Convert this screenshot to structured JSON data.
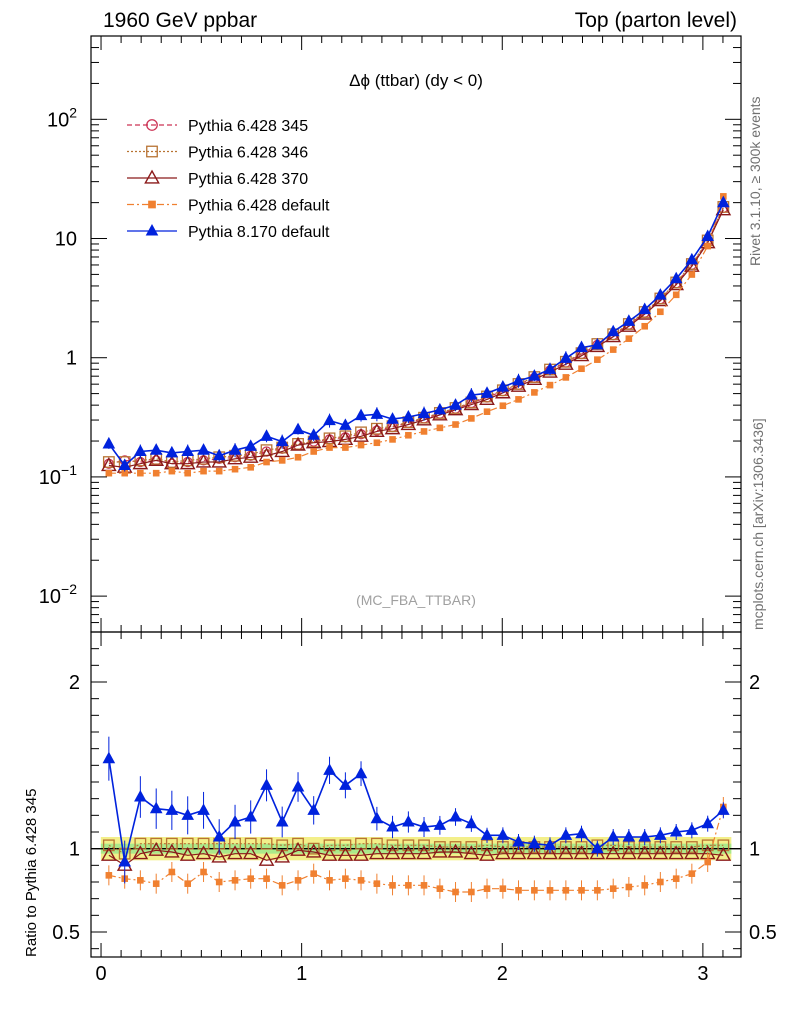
{
  "header": {
    "left": "1960 GeV ppbar",
    "right": "Top (parton level)"
  },
  "side_labels": {
    "rivet": "Rivet 3.1.10, ≥ 300k events",
    "mcplots": "mcplots.cern.ch [arXiv:1306.3436]"
  },
  "chart_data": [
    {
      "type": "line",
      "title": "Δϕ (ttbar) (dy < 0)",
      "annotation": "(MC_FBA_TTBAR)",
      "ylog": true,
      "ylim": [
        0.005,
        500
      ],
      "xlim": [
        -0.05,
        3.19
      ],
      "ytick_labels": [
        {
          "v": 0.01,
          "base": "10",
          "exp": "−2"
        },
        {
          "v": 0.1,
          "base": "10",
          "exp": "−1"
        },
        {
          "v": 1,
          "base": "1",
          "exp": ""
        },
        {
          "v": 10,
          "base": "10",
          "exp": ""
        },
        {
          "v": 100,
          "base": "10",
          "exp": "2"
        }
      ],
      "x": [
        0.039,
        0.118,
        0.196,
        0.275,
        0.353,
        0.432,
        0.511,
        0.589,
        0.668,
        0.746,
        0.825,
        0.903,
        0.982,
        1.06,
        1.139,
        1.218,
        1.296,
        1.375,
        1.453,
        1.532,
        1.61,
        1.689,
        1.767,
        1.846,
        1.924,
        2.003,
        2.081,
        2.16,
        2.238,
        2.317,
        2.395,
        2.474,
        2.553,
        2.631,
        2.71,
        2.788,
        2.867,
        2.945,
        3.024,
        3.102
      ],
      "series": [
        {
          "name": "Pythia 6.428 345",
          "color": "#cc3355",
          "marker": "open-circle",
          "dash": "5,3",
          "values": [
            0.03,
            0.032,
            0.031,
            0.032,
            0.03,
            0.031,
            0.032,
            0.033,
            0.034,
            0.035,
            0.038,
            0.04,
            0.043,
            0.046,
            0.048,
            0.05,
            0.053,
            0.057,
            0.061,
            0.066,
            0.072,
            0.079,
            0.087,
            0.097,
            0.108,
            0.122,
            0.138,
            0.158,
            0.182,
            0.212,
            0.25,
            0.298,
            0.36,
            0.44,
            0.555,
            0.72,
            0.98,
            1.4,
            2.2,
            4.2
          ]
        },
        {
          "name": "Pythia 6.428 346",
          "color": "#b87333",
          "marker": "open-square",
          "dash": "2,2",
          "values": [
            0.031,
            0.031,
            0.032,
            0.033,
            0.031,
            0.032,
            0.033,
            0.034,
            0.035,
            0.036,
            0.039,
            0.041,
            0.044,
            0.046,
            0.049,
            0.051,
            0.055,
            0.059,
            0.062,
            0.067,
            0.073,
            0.08,
            0.088,
            0.098,
            0.11,
            0.124,
            0.14,
            0.16,
            0.185,
            0.215,
            0.254,
            0.303,
            0.366,
            0.446,
            0.562,
            0.73,
            0.995,
            1.42,
            2.24,
            4.28
          ]
        },
        {
          "name": "Pythia 6.428 370",
          "color": "#8b1a1a",
          "marker": "open-triangle",
          "dash": "",
          "values": [
            0.029,
            0.028,
            0.03,
            0.032,
            0.03,
            0.03,
            0.031,
            0.031,
            0.033,
            0.034,
            0.035,
            0.038,
            0.043,
            0.045,
            0.046,
            0.048,
            0.051,
            0.056,
            0.059,
            0.064,
            0.07,
            0.077,
            0.085,
            0.094,
            0.104,
            0.118,
            0.134,
            0.153,
            0.176,
            0.205,
            0.242,
            0.289,
            0.349,
            0.427,
            0.54,
            0.7,
            0.953,
            1.36,
            2.14,
            4.05
          ]
        },
        {
          "name": "Pythia 6.428 default",
          "color": "#f08030",
          "marker": "filled-square",
          "dash": "7,3,2,3",
          "values": [
            0.025,
            0.025,
            0.025,
            0.025,
            0.026,
            0.025,
            0.026,
            0.026,
            0.027,
            0.028,
            0.031,
            0.032,
            0.034,
            0.038,
            0.041,
            0.041,
            0.043,
            0.045,
            0.048,
            0.052,
            0.056,
            0.06,
            0.064,
            0.072,
            0.082,
            0.092,
            0.104,
            0.119,
            0.137,
            0.159,
            0.188,
            0.224,
            0.272,
            0.336,
            0.427,
            0.565,
            0.784,
            1.16,
            2.01,
            5.25
          ]
        },
        {
          "name": "Pythia 8.170 default",
          "color": "#0022dd",
          "marker": "filled-triangle",
          "dash": "",
          "values": [
            0.044,
            0.029,
            0.038,
            0.039,
            0.037,
            0.038,
            0.039,
            0.035,
            0.039,
            0.042,
            0.051,
            0.046,
            0.058,
            0.052,
            0.069,
            0.063,
            0.076,
            0.078,
            0.071,
            0.074,
            0.079,
            0.085,
            0.093,
            0.113,
            0.117,
            0.132,
            0.149,
            0.163,
            0.186,
            0.23,
            0.283,
            0.298,
            0.384,
            0.47,
            0.59,
            0.78,
            1.07,
            1.54,
            2.42,
            4.65
          ]
        }
      ],
      "main_series_factor": 4.3
    },
    {
      "type": "line",
      "ylabel": "Ratio to Pythia 6.428 345",
      "ylim": [
        0.35,
        2.3
      ],
      "xlim": [
        -0.05,
        3.19
      ],
      "ytick_labels": [
        "0.5",
        "1",
        "2"
      ],
      "xtick_labels": [
        "0",
        "1",
        "2",
        "3"
      ],
      "reference_band": [
        0.93,
        1.07
      ],
      "series": [
        {
          "name": "Pythia 6.428 345",
          "values": [
            1,
            1,
            1,
            1,
            1,
            1,
            1,
            1,
            1,
            1,
            1,
            1,
            1,
            1,
            1,
            1,
            1,
            1,
            1,
            1,
            1,
            1,
            1,
            1,
            1,
            1,
            1,
            1,
            1,
            1,
            1,
            1,
            1,
            1,
            1,
            1,
            1,
            1,
            1,
            1
          ]
        },
        {
          "name": "Pythia 6.428 346",
          "values": [
            1.02,
            0.97,
            1.03,
            1.03,
            1.03,
            1.03,
            1.03,
            1.03,
            1.03,
            1.03,
            1.03,
            1.02,
            1.03,
            1.0,
            1.02,
            1.02,
            1.03,
            1.03,
            1.02,
            1.02,
            1.02,
            1.01,
            1.01,
            1.01,
            1.02,
            1.01,
            1.01,
            1.01,
            1.01,
            1.01,
            1.01,
            1.02,
            1.02,
            1.01,
            1.01,
            1.01,
            1.01,
            1.01,
            1.02,
            1.02
          ]
        },
        {
          "name": "Pythia 6.428 370",
          "values": [
            0.96,
            0.9,
            0.97,
            0.99,
            0.98,
            0.96,
            0.97,
            0.95,
            0.97,
            0.97,
            0.93,
            0.95,
            0.99,
            0.98,
            0.96,
            0.96,
            0.96,
            0.97,
            0.97,
            0.97,
            0.97,
            0.98,
            0.98,
            0.97,
            0.96,
            0.97,
            0.97,
            0.97,
            0.97,
            0.97,
            0.97,
            0.97,
            0.97,
            0.97,
            0.97,
            0.97,
            0.97,
            0.97,
            0.97,
            0.96
          ]
        },
        {
          "name": "Pythia 6.428 default",
          "values": [
            0.84,
            0.82,
            0.81,
            0.79,
            0.86,
            0.79,
            0.86,
            0.8,
            0.81,
            0.82,
            0.82,
            0.78,
            0.81,
            0.85,
            0.81,
            0.82,
            0.81,
            0.79,
            0.78,
            0.78,
            0.78,
            0.76,
            0.74,
            0.74,
            0.76,
            0.76,
            0.75,
            0.75,
            0.75,
            0.75,
            0.75,
            0.75,
            0.76,
            0.77,
            0.78,
            0.8,
            0.82,
            0.85,
            0.92,
            1.25
          ]
        },
        {
          "name": "Pythia 8.170 default",
          "values": [
            1.54,
            0.92,
            1.31,
            1.24,
            1.23,
            1.2,
            1.23,
            1.07,
            1.16,
            1.19,
            1.38,
            1.16,
            1.37,
            1.23,
            1.47,
            1.38,
            1.45,
            1.18,
            1.13,
            1.16,
            1.13,
            1.14,
            1.19,
            1.15,
            1.08,
            1.08,
            1.04,
            1.03,
            1.02,
            1.08,
            1.09,
            1.0,
            1.07,
            1.07,
            1.07,
            1.08,
            1.1,
            1.11,
            1.15,
            1.23
          ]
        }
      ]
    }
  ]
}
